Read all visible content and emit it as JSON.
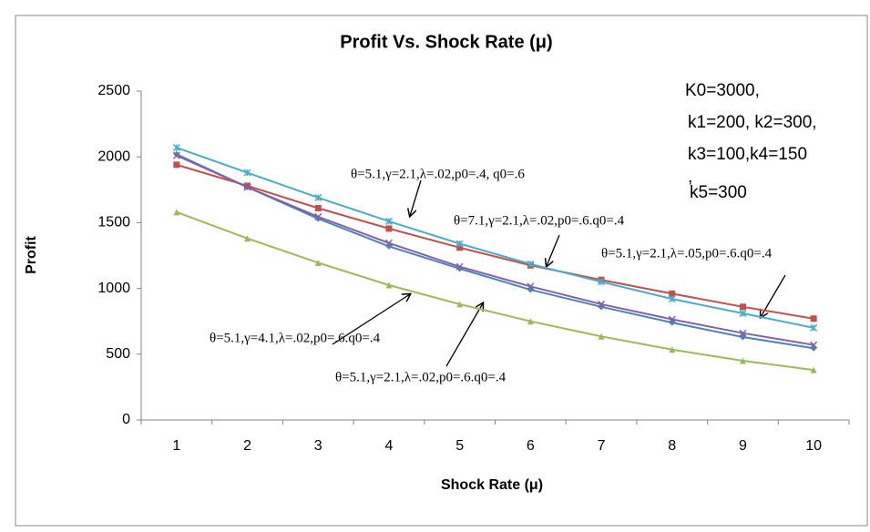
{
  "chart_data": {
    "type": "line",
    "title": "Profit  Vs. Shock Rate (μ)",
    "x_label": "Shock Rate (μ)",
    "y_label": "Profit",
    "categories": [
      "1",
      "2",
      "3",
      "4",
      "5",
      "6",
      "7",
      "8",
      "9",
      "10"
    ],
    "ylim": [
      0,
      2500
    ],
    "yticks": [
      0,
      500,
      1000,
      1500,
      2000,
      2500
    ],
    "grid": false,
    "series": [
      {
        "color": "#4f81bd",
        "marker": "diamond",
        "values": [
          2020,
          1770,
          1530,
          1320,
          1150,
          990,
          860,
          740,
          630,
          545
        ]
      },
      {
        "color": "#c0504d",
        "marker": "square",
        "values": [
          1940,
          1780,
          1610,
          1455,
          1310,
          1175,
          1065,
          960,
          860,
          770
        ]
      },
      {
        "color": "#9bbb59",
        "marker": "triangle",
        "values": [
          1580,
          1380,
          1195,
          1025,
          880,
          750,
          635,
          535,
          450,
          380
        ]
      },
      {
        "color": "#8064a2",
        "marker": "x",
        "values": [
          2010,
          1770,
          1545,
          1345,
          1165,
          1015,
          880,
          765,
          660,
          570
        ]
      },
      {
        "color": "#4bacc6",
        "marker": "star",
        "values": [
          2070,
          1880,
          1690,
          1510,
          1340,
          1185,
          1050,
          920,
          810,
          700
        ]
      }
    ],
    "annotations": [
      "θ=5.1,γ=2.1,λ=.02,p0=.4, q0=.6",
      "θ=7.1,γ=2.1,λ=.02,p0=.6.q0=.4",
      "θ=5.1,γ=2.1,λ=.05,p0=.6.q0=.4",
      "θ=5.1,γ=4.1,λ=.02,p0=.6.q0=.4",
      "θ=5.1,γ=2.1,λ=.02,p0=.6.q0=.4"
    ],
    "parameters": [
      "K0=3000,",
      "k1=200, k2=300,",
      "k3=100,k4=150",
      ",",
      "k5=300"
    ]
  }
}
